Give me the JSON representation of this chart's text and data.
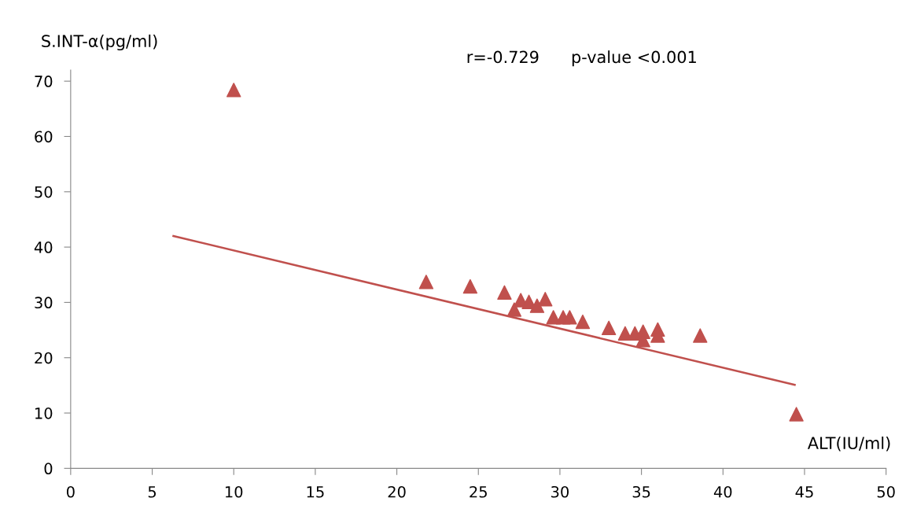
{
  "chart_data": {
    "type": "scatter",
    "xlabel": "ALT(IU/ml)",
    "ylabel": "S.INT-α(pg/ml)",
    "annotations": [
      "r=-0.729",
      "p-value <0.001"
    ],
    "series": [
      {
        "color": "#c0504d",
        "marker": "triangle",
        "x": [
          10,
          21.8,
          24.5,
          26.6,
          27.2,
          27.6,
          28.1,
          28.6,
          29.1,
          29.6,
          30.2,
          30.6,
          31.4,
          33.0,
          34.0,
          34.6,
          35.1,
          35.1,
          36.0,
          36.0,
          38.6,
          44.5
        ],
        "values": [
          68.4,
          33.7,
          32.9,
          31.8,
          28.7,
          30.4,
          30.1,
          29.4,
          30.6,
          27.3,
          27.3,
          27.3,
          26.5,
          25.4,
          24.4,
          24.4,
          24.7,
          23.2,
          25.1,
          24.0,
          24.0,
          9.8
        ]
      },
      {
        "type": "line",
        "color": "#c0504d",
        "marker": "none",
        "x": [
          6.3,
          44.4
        ],
        "values": [
          42.0,
          15.1
        ]
      }
    ],
    "xlim": [
      0,
      50
    ],
    "xticks": [
      0,
      5,
      10,
      15,
      20,
      25,
      30,
      35,
      40,
      45,
      50
    ],
    "ylim": [
      0,
      72
    ],
    "yticks": [
      0,
      10,
      20,
      30,
      40,
      50,
      60,
      70
    ],
    "grid": false,
    "legend": false
  }
}
